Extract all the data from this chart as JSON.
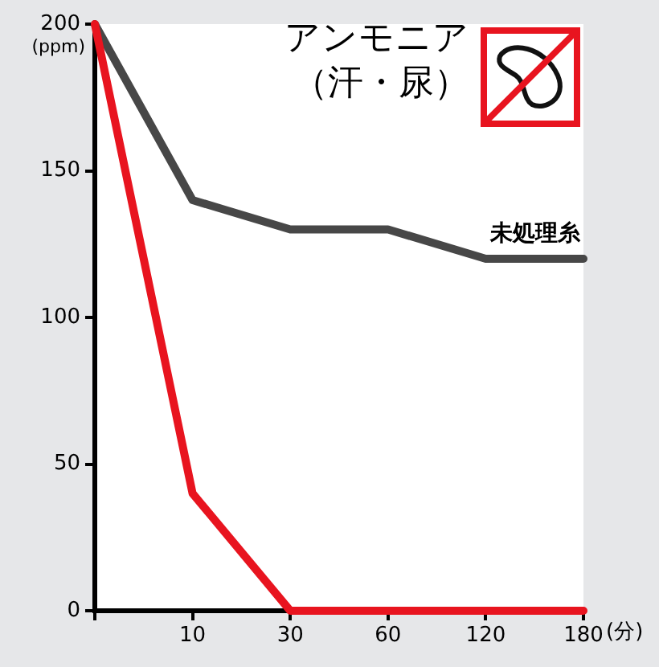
{
  "chart_data": {
    "type": "line",
    "title": "アンモニア",
    "subtitle": "（汗・尿）",
    "xlabel": "(分)",
    "ylabel": "(ppm)",
    "categories": [
      null,
      "10",
      "30",
      "60",
      "120",
      "180"
    ],
    "series": [
      {
        "name": "未処理糸",
        "color": "#474747",
        "values": [
          200,
          140,
          130,
          130,
          120,
          120
        ]
      },
      {
        "color": "#e8141f",
        "values": [
          200,
          40,
          0,
          0,
          0,
          0
        ]
      }
    ],
    "ylim": [
      0,
      200
    ],
    "yticks": [
      0,
      50,
      100,
      150,
      200
    ],
    "grid": false,
    "legend": false,
    "marker": "none",
    "line_style": "solid"
  }
}
